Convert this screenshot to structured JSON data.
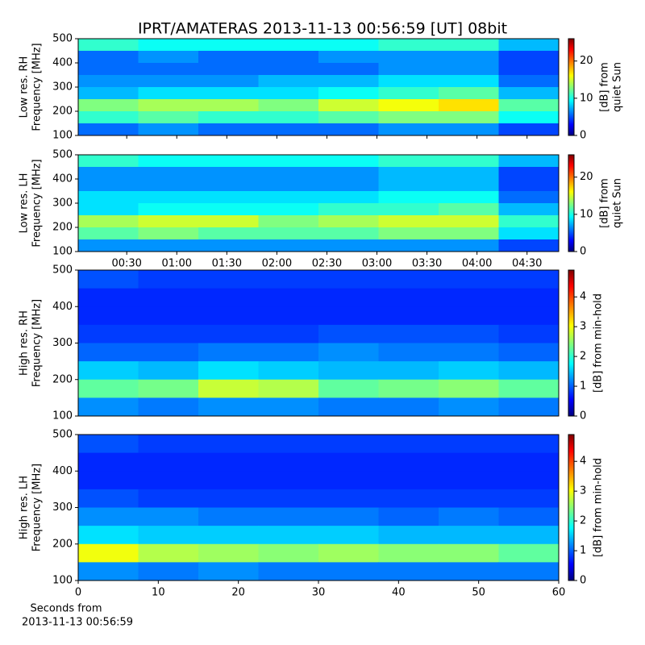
{
  "title": "IPRT/AMATERAS 2013-11-13 00:56:59 [UT]   08bit",
  "chart_data": [
    {
      "type": "heatmap",
      "ylabel": [
        "Low res. RH",
        "Frequency [MHz]"
      ],
      "cbar_label": [
        "[dB] from",
        "quiet Sun"
      ],
      "xlim": [
        0.9,
        289
      ],
      "ylim": [
        100,
        500
      ],
      "yticks": [
        100,
        200,
        300,
        400,
        500
      ],
      "clim": [
        0,
        26
      ],
      "cticks": [
        0,
        10,
        20
      ],
      "z": [
        [
          11,
          10,
          10,
          10,
          10,
          11,
          11,
          8
        ],
        [
          6,
          7,
          6,
          6,
          7,
          7,
          7,
          5
        ],
        [
          6,
          6,
          6,
          6,
          6,
          7,
          7,
          5
        ],
        [
          7,
          7,
          7,
          8,
          8,
          9,
          9,
          6
        ],
        [
          8,
          9,
          9,
          9,
          10,
          11,
          12,
          8
        ],
        [
          13,
          14,
          14,
          13,
          15,
          16,
          17,
          12
        ],
        [
          11,
          12,
          11,
          11,
          12,
          13,
          13,
          10
        ],
        [
          6,
          7,
          6,
          6,
          6,
          7,
          7,
          5
        ]
      ]
    },
    {
      "type": "heatmap",
      "ylabel": [
        "Low res. LH",
        "Frequency [MHz]"
      ],
      "cbar_label": [
        "[dB] from",
        "quiet Sun"
      ],
      "xlim": [
        0.9,
        289
      ],
      "ylim": [
        100,
        500
      ],
      "yticks": [
        100,
        200,
        300,
        400,
        500
      ],
      "xticks": [
        {
          "value": 30,
          "label": "00:30"
        },
        {
          "value": 60,
          "label": "01:00"
        },
        {
          "value": 90,
          "label": "01:30"
        },
        {
          "value": 120,
          "label": "02:00"
        },
        {
          "value": 150,
          "label": "02:30"
        },
        {
          "value": 180,
          "label": "03:00"
        },
        {
          "value": 210,
          "label": "03:30"
        },
        {
          "value": 240,
          "label": "04:00"
        },
        {
          "value": 270,
          "label": "04:30"
        }
      ],
      "clim": [
        0,
        26
      ],
      "cticks": [
        0,
        10,
        20
      ],
      "z": [
        [
          11,
          10,
          10,
          10,
          10,
          11,
          11,
          8
        ],
        [
          7,
          7,
          7,
          7,
          7,
          8,
          8,
          5
        ],
        [
          7,
          7,
          7,
          7,
          7,
          8,
          8,
          5
        ],
        [
          9,
          9,
          9,
          9,
          9,
          10,
          10,
          6
        ],
        [
          9,
          10,
          10,
          10,
          11,
          11,
          12,
          8
        ],
        [
          14,
          15,
          15,
          13,
          14,
          15,
          15,
          11
        ],
        [
          12,
          13,
          12,
          12,
          12,
          13,
          13,
          9
        ],
        [
          7,
          7,
          7,
          7,
          7,
          7,
          7,
          5
        ]
      ]
    },
    {
      "type": "heatmap",
      "ylabel": [
        "High res. RH",
        "Frequency [MHz]"
      ],
      "cbar_label": [
        "[dB] from min-hold"
      ],
      "xlim": [
        0,
        60
      ],
      "ylim": [
        100,
        500
      ],
      "yticks": [
        100,
        200,
        300,
        400,
        500
      ],
      "clim": [
        0,
        4.9
      ],
      "cticks": [
        0,
        1,
        2,
        3,
        4
      ],
      "z": [
        [
          1.0,
          0.9,
          0.9,
          0.9,
          0.9,
          0.9,
          0.9,
          0.9
        ],
        [
          0.8,
          0.8,
          0.8,
          0.8,
          0.8,
          0.8,
          0.8,
          0.8
        ],
        [
          0.8,
          0.8,
          0.8,
          0.8,
          0.8,
          0.8,
          0.8,
          0.8
        ],
        [
          0.9,
          0.9,
          0.9,
          0.9,
          1.0,
          1.0,
          1.0,
          0.9
        ],
        [
          1.1,
          1.1,
          1.2,
          1.2,
          1.3,
          1.2,
          1.2,
          1.1
        ],
        [
          1.6,
          1.5,
          1.7,
          1.6,
          1.5,
          1.5,
          1.6,
          1.5
        ],
        [
          2.3,
          2.4,
          2.8,
          2.7,
          2.3,
          2.4,
          2.5,
          2.3
        ],
        [
          1.3,
          1.2,
          1.3,
          1.3,
          1.2,
          1.2,
          1.3,
          1.2
        ]
      ]
    },
    {
      "type": "heatmap",
      "ylabel": [
        "High res. LH",
        "Frequency [MHz]"
      ],
      "cbar_label": [
        "[dB] from min-hold"
      ],
      "xlim": [
        0,
        60
      ],
      "ylim": [
        100,
        500
      ],
      "yticks": [
        100,
        200,
        300,
        400,
        500
      ],
      "xticks": [
        0,
        10,
        20,
        30,
        40,
        50,
        60
      ],
      "xlabel": [
        "Seconds from",
        "2013-11-13 00:56:59"
      ],
      "clim": [
        0,
        4.9
      ],
      "cticks": [
        0,
        1,
        2,
        3,
        4
      ],
      "z": [
        [
          1.0,
          0.9,
          0.9,
          0.9,
          0.9,
          0.9,
          0.9,
          0.9
        ],
        [
          0.8,
          0.8,
          0.8,
          0.8,
          0.8,
          0.8,
          0.8,
          0.8
        ],
        [
          0.8,
          0.8,
          0.8,
          0.8,
          0.8,
          0.8,
          0.8,
          0.8
        ],
        [
          1.0,
          0.9,
          0.9,
          0.9,
          0.9,
          0.9,
          0.9,
          0.9
        ],
        [
          1.3,
          1.3,
          1.2,
          1.2,
          1.2,
          1.1,
          1.2,
          1.1
        ],
        [
          1.7,
          1.6,
          1.6,
          1.6,
          1.6,
          1.5,
          1.5,
          1.5
        ],
        [
          3.0,
          2.7,
          2.6,
          2.5,
          2.6,
          2.5,
          2.5,
          2.3
        ],
        [
          1.3,
          1.2,
          1.3,
          1.2,
          1.2,
          1.2,
          1.2,
          1.2
        ]
      ]
    }
  ]
}
